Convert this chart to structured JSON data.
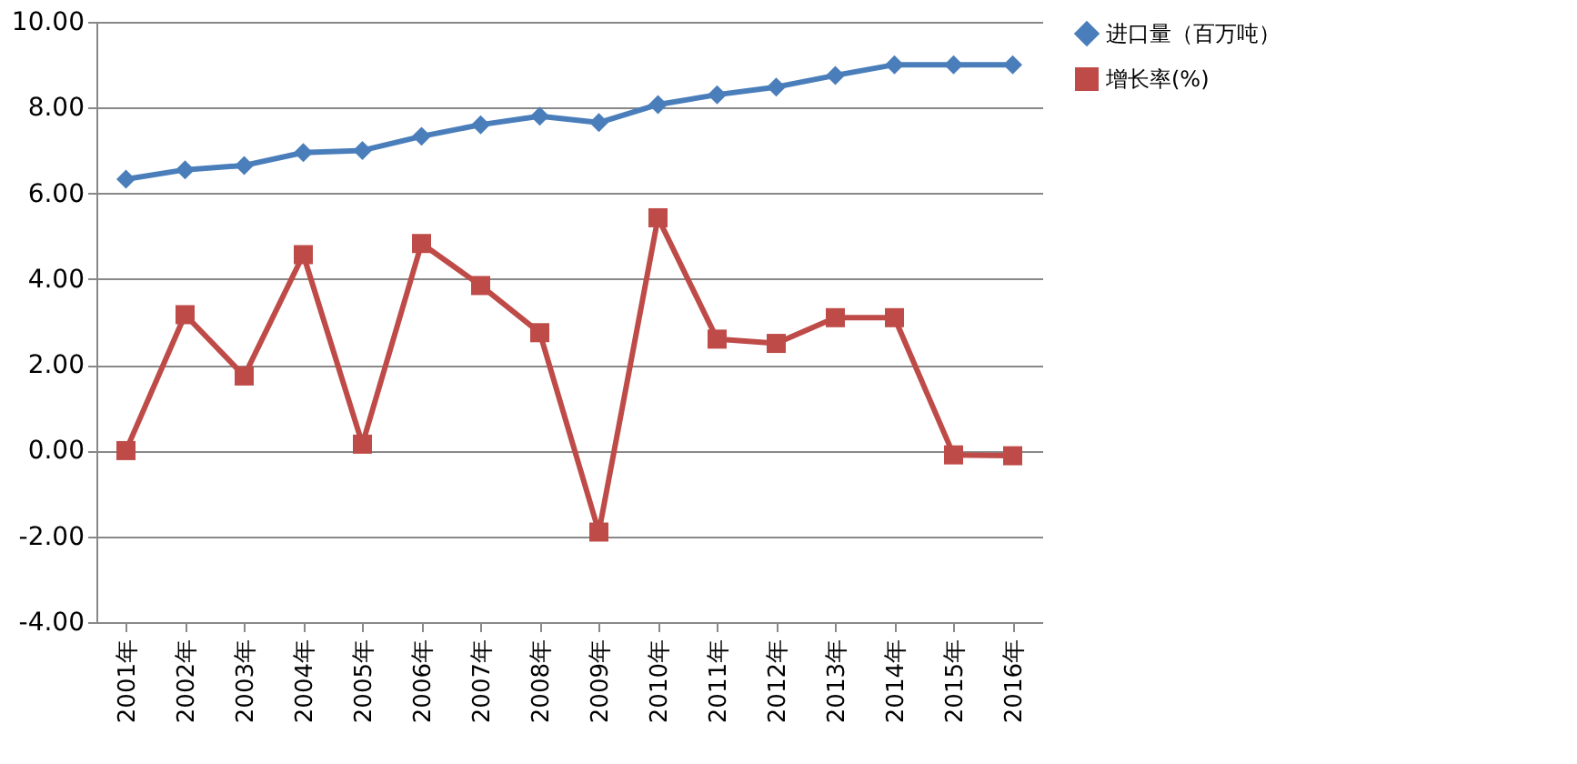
{
  "chart_data": {
    "type": "line",
    "categories": [
      "2001年",
      "2002年",
      "2003年",
      "2004年",
      "2005年",
      "2006年",
      "2007年",
      "2008年",
      "2009年",
      "2010年",
      "2011年",
      "2012年",
      "2013年",
      "2014年",
      "2015年",
      "2016年"
    ],
    "series": [
      {
        "name": "进口量（百万吨）",
        "color": "#4a7ebb",
        "marker": "diamond",
        "values": [
          6.33,
          6.55,
          6.65,
          6.95,
          7.0,
          7.33,
          7.6,
          7.8,
          7.65,
          8.07,
          8.3,
          8.48,
          8.75,
          9.0,
          9.0,
          9.0
        ]
      },
      {
        "name": "增长率(%)",
        "color": "#be4b48",
        "marker": "square",
        "values": [
          0.0,
          3.17,
          1.74,
          4.57,
          0.15,
          4.83,
          3.85,
          2.75,
          -1.9,
          5.43,
          2.6,
          2.5,
          3.1,
          3.1,
          -0.1,
          -0.12
        ]
      }
    ],
    "ylim": [
      -4,
      10
    ],
    "yticks": [
      {
        "value": -4,
        "label": "-4.00"
      },
      {
        "value": -2,
        "label": "-2.00"
      },
      {
        "value": 0,
        "label": "0.00"
      },
      {
        "value": 2,
        "label": "2.00"
      },
      {
        "value": 4,
        "label": "4.00"
      },
      {
        "value": 6,
        "label": "6.00"
      },
      {
        "value": 8,
        "label": "8.00"
      },
      {
        "value": 10,
        "label": "10.00"
      }
    ],
    "grid": "y",
    "legend": "right",
    "line_style": "solid"
  }
}
